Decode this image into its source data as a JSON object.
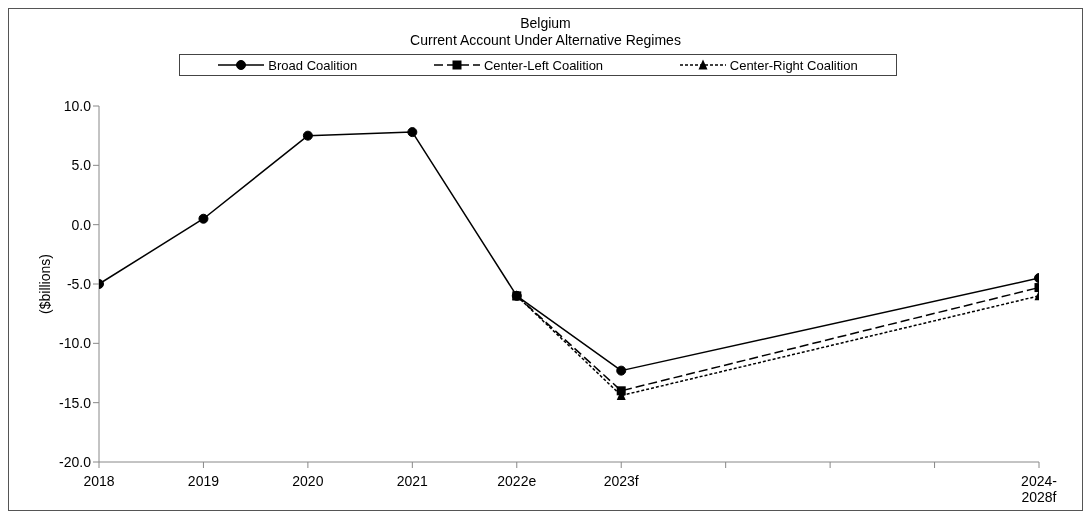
{
  "chart_data": {
    "type": "line",
    "title": "Belgium",
    "subtitle": "Current Account Under Alternative Regimes",
    "ylabel": "($billions)",
    "categories": [
      "2018",
      "2019",
      "2020",
      "2021",
      "2022e",
      "2023f",
      null,
      null,
      null,
      "2024-2028f"
    ],
    "series": [
      {
        "name": "Broad Coalition",
        "color": "#000000",
        "marker": "circle",
        "line_style": "solid",
        "values": [
          -5.0,
          0.5,
          7.5,
          7.8,
          -6.0,
          -12.3,
          null,
          null,
          null,
          -4.5
        ]
      },
      {
        "name": "Center-Left Coalition",
        "color": "#000000",
        "marker": "square",
        "line_style": "dashed",
        "values": [
          null,
          null,
          null,
          null,
          -6.0,
          -14.0,
          null,
          null,
          null,
          -5.3
        ]
      },
      {
        "name": "Center-Right Coalition",
        "color": "#000000",
        "marker": "triangle",
        "line_style": "dotted",
        "values": [
          null,
          null,
          null,
          null,
          -6.0,
          -14.4,
          null,
          null,
          null,
          -6.0
        ]
      }
    ],
    "ylim": [
      -20,
      10
    ],
    "yticks": [
      {
        "value": -20,
        "label": "-20.0"
      },
      {
        "value": -15,
        "label": "-15.0"
      },
      {
        "value": -10,
        "label": "-10.0"
      },
      {
        "value": -5,
        "label": "-5.0"
      },
      {
        "value": 0,
        "label": "0.0"
      },
      {
        "value": 5,
        "label": "5.0"
      },
      {
        "value": 10,
        "label": "10.0"
      }
    ],
    "grid": false,
    "legend": "top"
  }
}
